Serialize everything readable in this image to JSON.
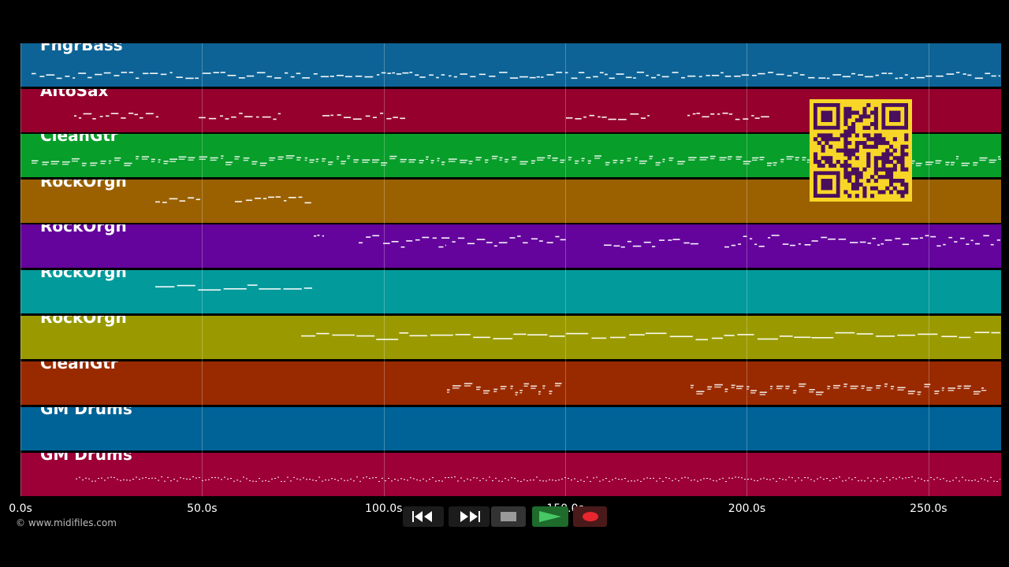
{
  "tracks": [
    {
      "name": "FngrBass",
      "color": "#0d6396"
    },
    {
      "name": "AltoSax",
      "color": "#95002c"
    },
    {
      "name": "CleanGtr",
      "color": "#079e29"
    },
    {
      "name": "RockOrgn",
      "color": "#9b6101"
    },
    {
      "name": "RockOrgn",
      "color": "#64049c"
    },
    {
      "name": "RockOrgn",
      "color": "#039a9b"
    },
    {
      "name": "RockOrgn",
      "color": "#9a9a00"
    },
    {
      "name": "CleanGtr",
      "color": "#992a00"
    },
    {
      "name": "GM Drums",
      "color": "#006397"
    },
    {
      "name": "GM Drums",
      "color": "#9d0036"
    }
  ],
  "timeline": {
    "labels": [
      "0.0s",
      "50.0s",
      "100.0s",
      "150.0s",
      "200.0s",
      "250.0s"
    ],
    "duration_s": 270
  },
  "footer": {
    "copyright": "© www.midifiles.com"
  },
  "transport": {
    "rewind_icon": "rewind-icon",
    "fastforward_icon": "fast-forward-icon",
    "stop_icon": "stop-icon",
    "play_icon": "play-icon",
    "record_icon": "record-icon"
  },
  "qr": {
    "fg": "#4a0f5c",
    "bg": "#f8d627"
  }
}
